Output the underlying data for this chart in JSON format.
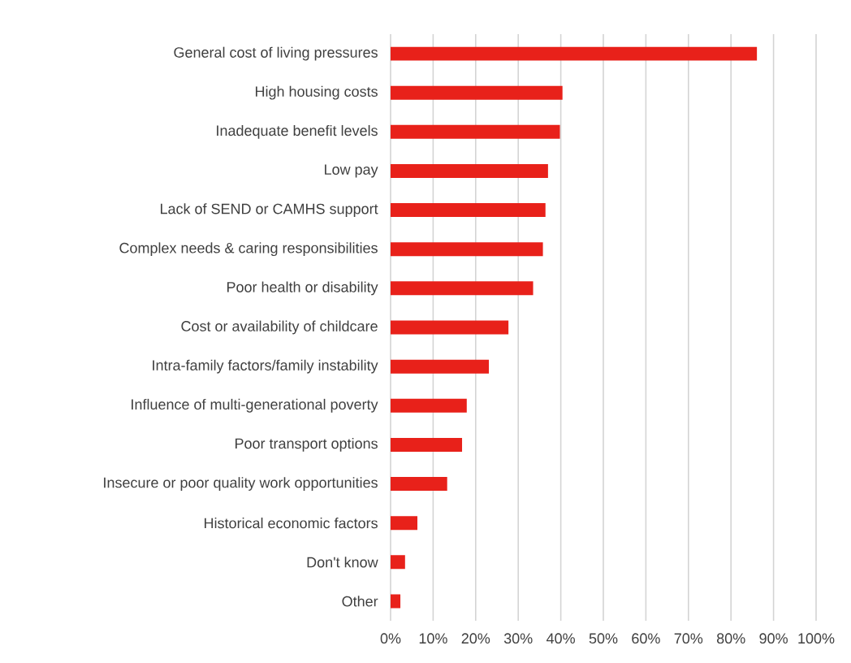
{
  "chart_data": {
    "type": "bar",
    "orientation": "horizontal",
    "categories": [
      "General cost of living pressures",
      "High housing costs",
      "Inadequate benefit levels",
      "Low pay",
      "Lack of SEND or CAMHS support",
      "Complex needs & caring responsibilities",
      "Poor health or disability",
      "Cost or availability of childcare",
      "Intra-family factors/family instability",
      "Influence of multi-generational poverty",
      "Poor transport options",
      "Insecure or poor quality work opportunities",
      "Historical economic factors",
      "Don't know",
      "Other"
    ],
    "values": [
      86.1,
      40.4,
      39.8,
      37.0,
      36.4,
      35.8,
      33.5,
      27.7,
      23.1,
      17.9,
      16.8,
      13.3,
      6.3,
      3.4,
      2.3
    ],
    "color": "#e8211a",
    "xlim": [
      0,
      100
    ],
    "xticks": [
      {
        "value": 0,
        "label": "0%"
      },
      {
        "value": 10,
        "label": "10%"
      },
      {
        "value": 20,
        "label": "20%"
      },
      {
        "value": 30,
        "label": "30%"
      },
      {
        "value": 40,
        "label": "40%"
      },
      {
        "value": 50,
        "label": "50%"
      },
      {
        "value": 60,
        "label": "60%"
      },
      {
        "value": 70,
        "label": "70%"
      },
      {
        "value": 80,
        "label": "80%"
      },
      {
        "value": 90,
        "label": "90%"
      },
      {
        "value": 100,
        "label": "100%"
      }
    ],
    "grid": "x"
  }
}
